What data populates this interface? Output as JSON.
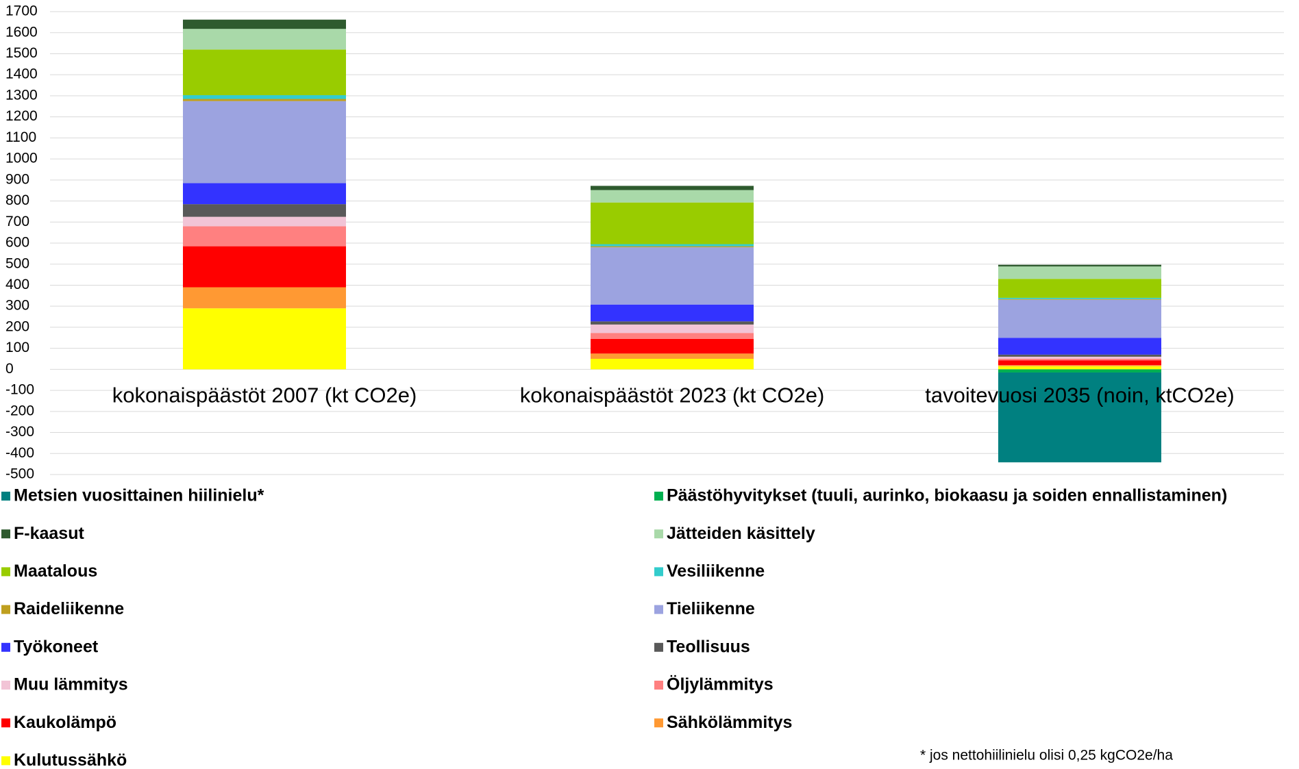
{
  "chart_data": {
    "type": "stacked_bar",
    "categories": [
      "kokonaispäästöt 2007 (kt CO2e)",
      "kokonaispäästöt 2023 (kt CO2e)",
      "tavoitevuosi 2035 (noin, ktCO2e)"
    ],
    "series": [
      {
        "name": "Metsien vuosittainen hiilinielu*",
        "color": "#008080",
        "values": [
          0,
          0,
          -427
        ]
      },
      {
        "name": "Päästöhyvitykset (tuuli, aurinko, biokaasu ja soiden ennallistaminen)",
        "color": "#00b050",
        "values": [
          0,
          0,
          -15
        ]
      },
      {
        "name": "F-kaasut",
        "color": "#2e5a2e",
        "values": [
          44,
          20,
          8
        ]
      },
      {
        "name": "Jätteiden käsittely",
        "color": "#a9d9a9",
        "values": [
          98,
          59,
          59
        ]
      },
      {
        "name": "Maatalous",
        "color": "#99cc00",
        "values": [
          217,
          198,
          90
        ]
      },
      {
        "name": "Vesiliikenne",
        "color": "#33cccc",
        "values": [
          18,
          10,
          6
        ]
      },
      {
        "name": "Raideliikenne",
        "color": "#bf9f1f",
        "values": [
          10,
          5,
          3
        ]
      },
      {
        "name": "Tieliikenne",
        "color": "#9ca3e0",
        "values": [
          390,
          272,
          181
        ]
      },
      {
        "name": "Työkoneet",
        "color": "#3333ff",
        "values": [
          100,
          80,
          80
        ]
      },
      {
        "name": "Teollisuus",
        "color": "#595959",
        "values": [
          60,
          15,
          10
        ]
      },
      {
        "name": "Muu lämmitys",
        "color": "#f2c4d6",
        "values": [
          45,
          40,
          10
        ]
      },
      {
        "name": "Öljylämmitys",
        "color": "#ff8080",
        "values": [
          95,
          28,
          7
        ]
      },
      {
        "name": "Kaukolämpö",
        "color": "#ff0000",
        "values": [
          195,
          70,
          23
        ]
      },
      {
        "name": "Sähkölämmitys",
        "color": "#ff9933",
        "values": [
          100,
          25,
          5
        ]
      },
      {
        "name": "Kulutussähkö",
        "color": "#ffff00",
        "values": [
          290,
          50,
          15
        ]
      }
    ],
    "ylim": [
      -500,
      1700
    ],
    "yticks": [
      -500,
      -400,
      -300,
      -200,
      -100,
      0,
      100,
      200,
      300,
      400,
      500,
      600,
      700,
      800,
      900,
      1000,
      1100,
      1200,
      1300,
      1400,
      1500,
      1600,
      1700
    ],
    "grid": true,
    "footnote": "* jos nettohiilinielu olisi 0,25 kgCO2e/ha"
  }
}
